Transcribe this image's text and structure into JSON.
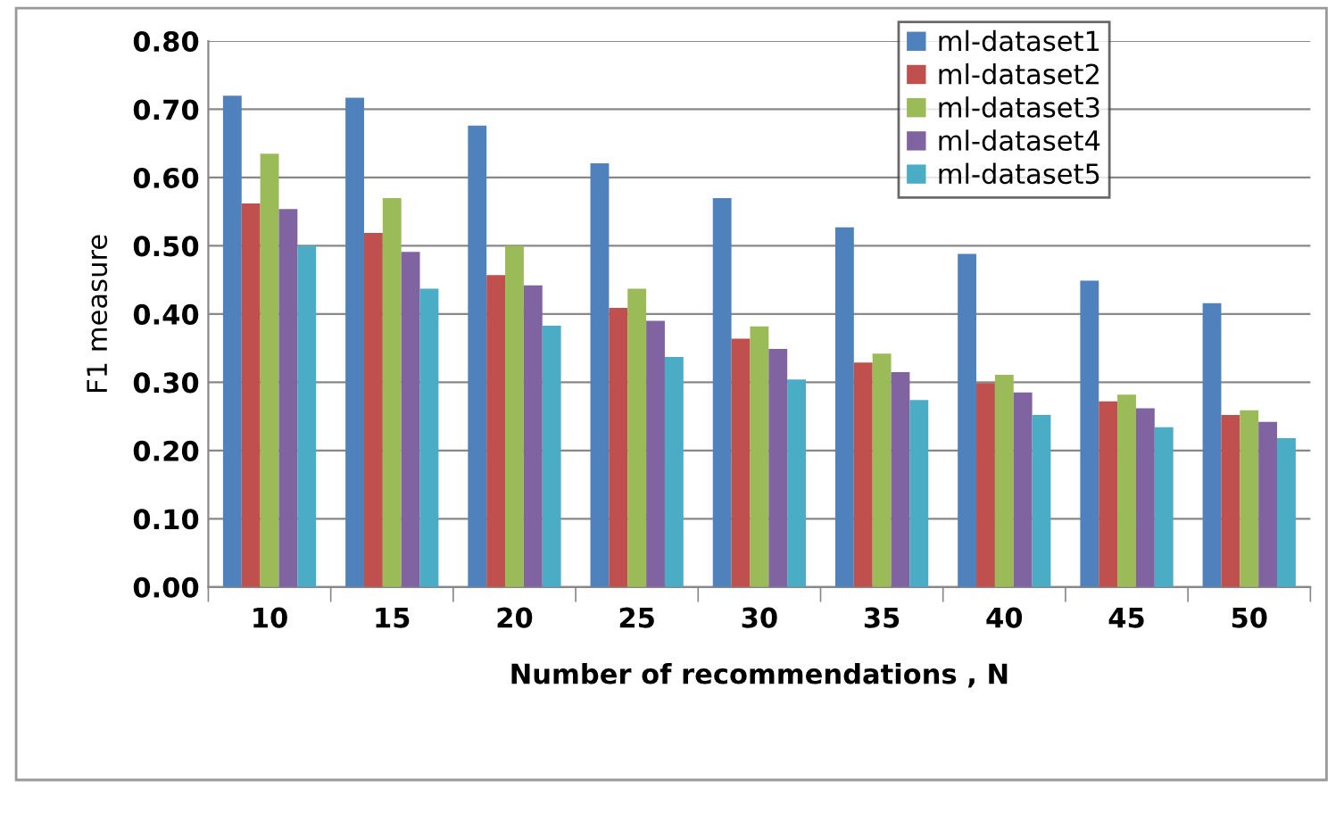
{
  "chart_data": {
    "type": "bar",
    "xlabel": "Number of recommendations , N",
    "ylabel": "F1 measure",
    "categories": [
      "10",
      "15",
      "20",
      "25",
      "30",
      "35",
      "40",
      "45",
      "50"
    ],
    "series": [
      {
        "name": "ml-dataset1",
        "color": "#4f81bd",
        "values": [
          0.72,
          0.717,
          0.676,
          0.621,
          0.57,
          0.527,
          0.488,
          0.449,
          0.416
        ]
      },
      {
        "name": "ml-dataset2",
        "color": "#c0504d",
        "values": [
          0.562,
          0.519,
          0.457,
          0.409,
          0.364,
          0.329,
          0.299,
          0.272,
          0.252
        ]
      },
      {
        "name": "ml-dataset3",
        "color": "#9bbb59",
        "values": [
          0.635,
          0.57,
          0.5,
          0.437,
          0.382,
          0.342,
          0.311,
          0.282,
          0.259
        ]
      },
      {
        "name": "ml-dataset4",
        "color": "#8064a2",
        "values": [
          0.554,
          0.491,
          0.442,
          0.39,
          0.349,
          0.315,
          0.285,
          0.262,
          0.242
        ]
      },
      {
        "name": "ml-dataset5",
        "color": "#4bacc6",
        "values": [
          0.5,
          0.437,
          0.383,
          0.337,
          0.304,
          0.274,
          0.252,
          0.234,
          0.218
        ]
      }
    ],
    "ylim": [
      0,
      0.8
    ],
    "yticks": [
      {
        "value": 0,
        "label": "0.00"
      },
      {
        "value": 0.1,
        "label": "0.10"
      },
      {
        "value": 0.2,
        "label": "0.20"
      },
      {
        "value": 0.3,
        "label": "0.30"
      },
      {
        "value": 0.4,
        "label": "0.40"
      },
      {
        "value": 0.5,
        "label": "0.50"
      },
      {
        "value": 0.6,
        "label": "0.60"
      },
      {
        "value": 0.7,
        "label": "0.70"
      },
      {
        "value": 0.8,
        "label": "0.80"
      }
    ],
    "grid": "y",
    "legend": "top right"
  }
}
